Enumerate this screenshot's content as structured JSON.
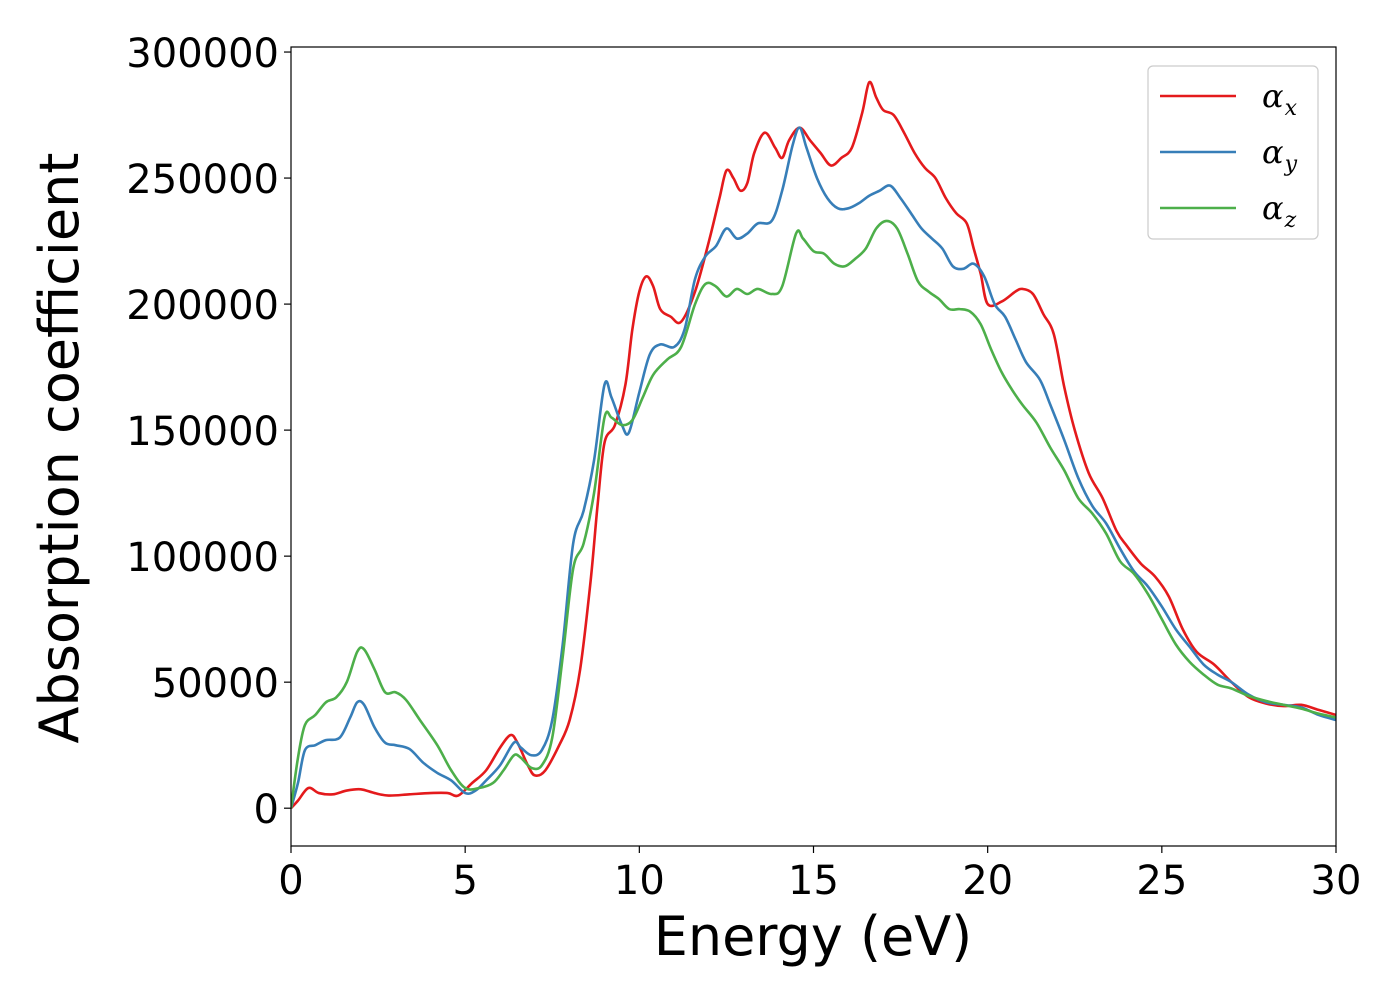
{
  "chart_data": {
    "type": "line",
    "xlabel": "Energy (eV)",
    "ylabel": "Absorption coefficient",
    "xlim": [
      0,
      30
    ],
    "ylim": [
      -15000,
      302000
    ],
    "x_ticks": [
      0,
      5,
      10,
      15,
      20,
      25,
      30
    ],
    "x_tick_labels": [
      "0",
      "5",
      "10",
      "15",
      "20",
      "25",
      "30"
    ],
    "y_ticks": [
      0,
      50000,
      100000,
      150000,
      200000,
      250000,
      300000
    ],
    "y_tick_labels": [
      "0",
      "50000",
      "100000",
      "150000",
      "200000",
      "250000",
      "300000"
    ],
    "grid": false,
    "legend_position": "top-right",
    "series": [
      {
        "name": "αx",
        "legend_symbol": "α",
        "legend_subscript": "x",
        "color": "#e41a1c",
        "points": [
          [
            0,
            0
          ],
          [
            0.2,
            3000
          ],
          [
            0.5,
            8000
          ],
          [
            0.8,
            6000
          ],
          [
            1.2,
            5500
          ],
          [
            1.6,
            7000
          ],
          [
            2,
            7500
          ],
          [
            2.4,
            6000
          ],
          [
            2.8,
            5000
          ],
          [
            3.4,
            5500
          ],
          [
            4,
            6000
          ],
          [
            4.5,
            6000
          ],
          [
            4.8,
            5000
          ],
          [
            5.2,
            10000
          ],
          [
            5.6,
            15000
          ],
          [
            6,
            24000
          ],
          [
            6.3,
            29000
          ],
          [
            6.5,
            26000
          ],
          [
            6.8,
            17000
          ],
          [
            7,
            13000
          ],
          [
            7.3,
            15000
          ],
          [
            7.7,
            25000
          ],
          [
            8,
            35000
          ],
          [
            8.3,
            55000
          ],
          [
            8.6,
            90000
          ],
          [
            8.8,
            120000
          ],
          [
            9,
            145000
          ],
          [
            9.3,
            152000
          ],
          [
            9.6,
            168000
          ],
          [
            9.8,
            190000
          ],
          [
            10,
            205000
          ],
          [
            10.2,
            211000
          ],
          [
            10.4,
            207000
          ],
          [
            10.6,
            198000
          ],
          [
            10.9,
            195000
          ],
          [
            11.2,
            193000
          ],
          [
            11.6,
            205000
          ],
          [
            12,
            225000
          ],
          [
            12.3,
            242000
          ],
          [
            12.5,
            253000
          ],
          [
            12.7,
            250000
          ],
          [
            12.9,
            245000
          ],
          [
            13.1,
            248000
          ],
          [
            13.3,
            260000
          ],
          [
            13.6,
            268000
          ],
          [
            13.9,
            262000
          ],
          [
            14.1,
            258000
          ],
          [
            14.3,
            265000
          ],
          [
            14.6,
            270000
          ],
          [
            14.9,
            265000
          ],
          [
            15.2,
            260000
          ],
          [
            15.5,
            255000
          ],
          [
            15.8,
            258000
          ],
          [
            16.1,
            262000
          ],
          [
            16.4,
            276000
          ],
          [
            16.6,
            288000
          ],
          [
            16.8,
            282000
          ],
          [
            17,
            277000
          ],
          [
            17.3,
            275000
          ],
          [
            17.6,
            268000
          ],
          [
            17.9,
            260000
          ],
          [
            18.2,
            254000
          ],
          [
            18.5,
            250000
          ],
          [
            18.8,
            242000
          ],
          [
            19.1,
            236000
          ],
          [
            19.4,
            232000
          ],
          [
            19.6,
            222000
          ],
          [
            19.8,
            212000
          ],
          [
            20,
            200000
          ],
          [
            20.4,
            201000
          ],
          [
            20.8,
            205000
          ],
          [
            21,
            206000
          ],
          [
            21.3,
            204000
          ],
          [
            21.6,
            196000
          ],
          [
            21.9,
            188000
          ],
          [
            22.2,
            167000
          ],
          [
            22.5,
            150000
          ],
          [
            22.9,
            133000
          ],
          [
            23.3,
            123000
          ],
          [
            23.7,
            110000
          ],
          [
            24,
            104000
          ],
          [
            24.4,
            97000
          ],
          [
            24.8,
            92000
          ],
          [
            25.2,
            84000
          ],
          [
            25.6,
            71000
          ],
          [
            26,
            62000
          ],
          [
            26.5,
            57000
          ],
          [
            27,
            50000
          ],
          [
            27.5,
            44000
          ],
          [
            28,
            41500
          ],
          [
            28.5,
            40500
          ],
          [
            29,
            41000
          ],
          [
            29.5,
            39000
          ],
          [
            30,
            37000
          ]
        ]
      },
      {
        "name": "αy",
        "legend_symbol": "α",
        "legend_subscript": "y",
        "color": "#377eb8",
        "points": [
          [
            0,
            0
          ],
          [
            0.2,
            10000
          ],
          [
            0.4,
            23000
          ],
          [
            0.7,
            25000
          ],
          [
            1,
            27000
          ],
          [
            1.4,
            28000
          ],
          [
            1.7,
            36000
          ],
          [
            1.9,
            42000
          ],
          [
            2.1,
            41000
          ],
          [
            2.4,
            32000
          ],
          [
            2.7,
            26000
          ],
          [
            3,
            25000
          ],
          [
            3.4,
            23500
          ],
          [
            3.8,
            18000
          ],
          [
            4.2,
            14000
          ],
          [
            4.6,
            11000
          ],
          [
            5,
            6000
          ],
          [
            5.3,
            7000
          ],
          [
            5.6,
            11000
          ],
          [
            6,
            17000
          ],
          [
            6.4,
            26000
          ],
          [
            6.6,
            24000
          ],
          [
            6.9,
            21000
          ],
          [
            7.2,
            23000
          ],
          [
            7.5,
            35000
          ],
          [
            7.8,
            65000
          ],
          [
            8.1,
            105000
          ],
          [
            8.4,
            118000
          ],
          [
            8.7,
            138000
          ],
          [
            9,
            168000
          ],
          [
            9.2,
            163000
          ],
          [
            9.5,
            152000
          ],
          [
            9.7,
            149000
          ],
          [
            10,
            165000
          ],
          [
            10.3,
            180000
          ],
          [
            10.6,
            184000
          ],
          [
            11,
            183000
          ],
          [
            11.3,
            190000
          ],
          [
            11.6,
            210000
          ],
          [
            11.9,
            219000
          ],
          [
            12.2,
            223000
          ],
          [
            12.5,
            230000
          ],
          [
            12.8,
            226000
          ],
          [
            13.1,
            228000
          ],
          [
            13.4,
            232000
          ],
          [
            13.8,
            233000
          ],
          [
            14.1,
            245000
          ],
          [
            14.4,
            263000
          ],
          [
            14.6,
            270000
          ],
          [
            14.8,
            262000
          ],
          [
            15.1,
            250000
          ],
          [
            15.4,
            242000
          ],
          [
            15.7,
            238000
          ],
          [
            16,
            238000
          ],
          [
            16.3,
            240000
          ],
          [
            16.6,
            243000
          ],
          [
            16.9,
            245000
          ],
          [
            17.2,
            247000
          ],
          [
            17.5,
            242000
          ],
          [
            17.8,
            236000
          ],
          [
            18.1,
            230000
          ],
          [
            18.4,
            226000
          ],
          [
            18.7,
            222000
          ],
          [
            19,
            215000
          ],
          [
            19.3,
            214000
          ],
          [
            19.6,
            216000
          ],
          [
            19.9,
            211000
          ],
          [
            20.2,
            200000
          ],
          [
            20.5,
            195000
          ],
          [
            20.8,
            186000
          ],
          [
            21.1,
            177000
          ],
          [
            21.5,
            170000
          ],
          [
            21.8,
            160000
          ],
          [
            22.2,
            146000
          ],
          [
            22.6,
            131000
          ],
          [
            23,
            120000
          ],
          [
            23.4,
            113000
          ],
          [
            23.8,
            103000
          ],
          [
            24.2,
            94000
          ],
          [
            24.6,
            88000
          ],
          [
            25,
            80000
          ],
          [
            25.4,
            71000
          ],
          [
            25.8,
            64000
          ],
          [
            26.2,
            57000
          ],
          [
            26.6,
            53000
          ],
          [
            27,
            50000
          ],
          [
            27.5,
            45000
          ],
          [
            28,
            42000
          ],
          [
            28.5,
            41000
          ],
          [
            29,
            40000
          ],
          [
            29.5,
            37000
          ],
          [
            30,
            35000
          ]
        ]
      },
      {
        "name": "αz",
        "legend_symbol": "α",
        "legend_subscript": "z",
        "color": "#4daf4a",
        "points": [
          [
            0,
            0
          ],
          [
            0.2,
            20000
          ],
          [
            0.4,
            33000
          ],
          [
            0.7,
            37000
          ],
          [
            1,
            42000
          ],
          [
            1.3,
            44000
          ],
          [
            1.6,
            50000
          ],
          [
            1.9,
            62000
          ],
          [
            2.1,
            63000
          ],
          [
            2.4,
            55000
          ],
          [
            2.7,
            46000
          ],
          [
            3,
            46000
          ],
          [
            3.3,
            43000
          ],
          [
            3.7,
            35000
          ],
          [
            4.2,
            25000
          ],
          [
            4.6,
            15000
          ],
          [
            5,
            8000
          ],
          [
            5.4,
            8000
          ],
          [
            5.8,
            10000
          ],
          [
            6.1,
            15000
          ],
          [
            6.4,
            21000
          ],
          [
            6.6,
            20000
          ],
          [
            6.9,
            16000
          ],
          [
            7.2,
            17000
          ],
          [
            7.5,
            28000
          ],
          [
            7.8,
            60000
          ],
          [
            8.1,
            95000
          ],
          [
            8.4,
            105000
          ],
          [
            8.7,
            125000
          ],
          [
            9,
            155000
          ],
          [
            9.2,
            155000
          ],
          [
            9.5,
            152000
          ],
          [
            9.8,
            154000
          ],
          [
            10.1,
            163000
          ],
          [
            10.4,
            172000
          ],
          [
            10.8,
            178000
          ],
          [
            11.2,
            183000
          ],
          [
            11.6,
            200000
          ],
          [
            11.9,
            208000
          ],
          [
            12.2,
            207000
          ],
          [
            12.5,
            203000
          ],
          [
            12.8,
            206000
          ],
          [
            13.1,
            204000
          ],
          [
            13.4,
            206000
          ],
          [
            13.8,
            204000
          ],
          [
            14.1,
            207000
          ],
          [
            14.5,
            228000
          ],
          [
            14.7,
            226000
          ],
          [
            15,
            221000
          ],
          [
            15.3,
            220000
          ],
          [
            15.6,
            216000
          ],
          [
            15.9,
            215000
          ],
          [
            16.2,
            218000
          ],
          [
            16.5,
            222000
          ],
          [
            16.8,
            230000
          ],
          [
            17.1,
            233000
          ],
          [
            17.4,
            230000
          ],
          [
            17.7,
            220000
          ],
          [
            18,
            209000
          ],
          [
            18.3,
            205000
          ],
          [
            18.6,
            202000
          ],
          [
            18.9,
            198000
          ],
          [
            19.2,
            198000
          ],
          [
            19.5,
            197000
          ],
          [
            19.8,
            192000
          ],
          [
            20.1,
            182000
          ],
          [
            20.4,
            173000
          ],
          [
            20.7,
            166000
          ],
          [
            21,
            160000
          ],
          [
            21.4,
            153000
          ],
          [
            21.8,
            143000
          ],
          [
            22.2,
            134000
          ],
          [
            22.6,
            123000
          ],
          [
            23,
            117000
          ],
          [
            23.4,
            109000
          ],
          [
            23.8,
            98000
          ],
          [
            24.2,
            93000
          ],
          [
            24.6,
            85000
          ],
          [
            25,
            75000
          ],
          [
            25.4,
            65000
          ],
          [
            25.8,
            58000
          ],
          [
            26.2,
            53000
          ],
          [
            26.6,
            49000
          ],
          [
            27,
            47500
          ],
          [
            27.5,
            44500
          ],
          [
            28,
            42500
          ],
          [
            28.5,
            41000
          ],
          [
            29,
            39500
          ],
          [
            29.5,
            37500
          ],
          [
            30,
            36000
          ]
        ]
      }
    ]
  }
}
